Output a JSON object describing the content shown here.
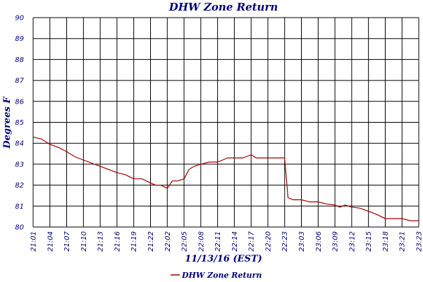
{
  "chart_data": {
    "type": "line",
    "title": "DHW Zone Return",
    "xlabel": "11/13/16 (EST)",
    "ylabel": "Degrees F",
    "ylim": [
      80,
      90
    ],
    "yticks": [
      "80",
      "81",
      "82",
      "83",
      "84",
      "85",
      "86",
      "87",
      "88",
      "89",
      "90"
    ],
    "categories": [
      "21:01",
      "21:04",
      "21:07",
      "21:10",
      "21:13",
      "21:16",
      "21:19",
      "21:22",
      "22:02",
      "22:05",
      "22:08",
      "22:11",
      "22:14",
      "22:17",
      "22:20",
      "22:23",
      "23:03",
      "23:06",
      "23:09",
      "23:12",
      "23:15",
      "23:18",
      "23:21",
      "23:23"
    ],
    "grid": true,
    "legend_position": "bottom",
    "colors": {
      "line": "#a00000",
      "grid": "#000000",
      "text": "#00007a"
    },
    "series": [
      {
        "name": "DHW Zone Return",
        "x": [
          0,
          0.5,
          1,
          1.5,
          2,
          2.5,
          3,
          3.5,
          4,
          4.5,
          5,
          5.5,
          6,
          6.5,
          7,
          7.3,
          7.6,
          8,
          8.3,
          8.6,
          9,
          9.3,
          9.6,
          10,
          10.5,
          11,
          11.3,
          11.6,
          12,
          12.5,
          13,
          13.3,
          13.6,
          14,
          14.5,
          15,
          15.2,
          15.5,
          16,
          16.5,
          17,
          17.5,
          18,
          18.3,
          18.6,
          19,
          19.5,
          20,
          20.5,
          21,
          21.5,
          22,
          22.5,
          23
        ],
        "values": [
          84.3,
          84.2,
          83.95,
          83.8,
          83.6,
          83.35,
          83.2,
          83.05,
          82.9,
          82.75,
          82.6,
          82.5,
          82.3,
          82.3,
          82.1,
          82.0,
          82.0,
          81.85,
          82.2,
          82.2,
          82.3,
          82.75,
          82.9,
          83.0,
          83.1,
          83.1,
          83.2,
          83.3,
          83.3,
          83.3,
          83.45,
          83.3,
          83.3,
          83.3,
          83.3,
          83.3,
          81.4,
          81.3,
          81.3,
          81.2,
          81.2,
          81.1,
          81.05,
          80.95,
          81.05,
          80.95,
          80.9,
          80.75,
          80.6,
          80.4,
          80.4,
          80.4,
          80.3,
          80.3
        ]
      }
    ]
  }
}
